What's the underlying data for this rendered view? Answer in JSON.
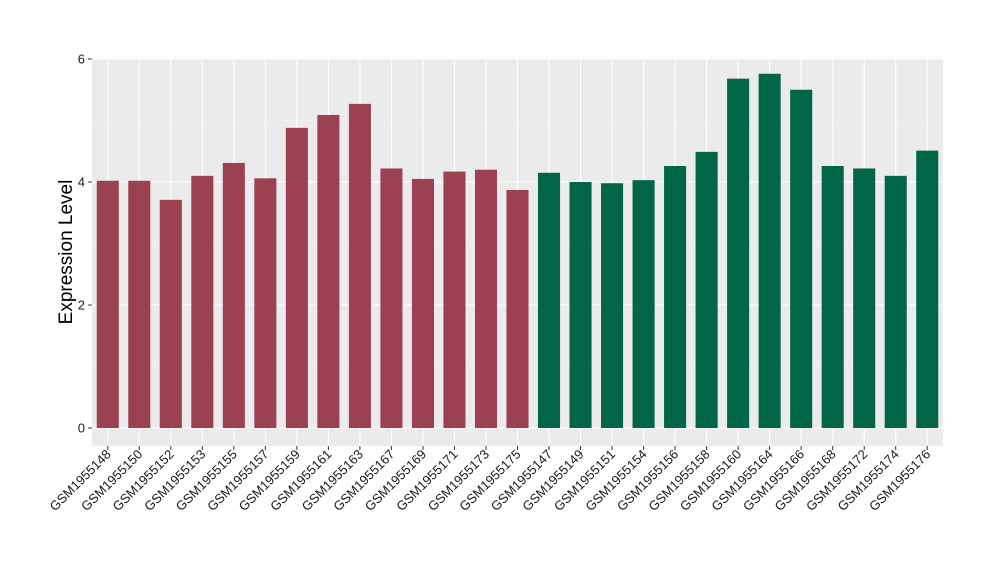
{
  "chart_data": {
    "type": "bar",
    "title": "",
    "xlabel": "",
    "ylabel": "Expression Level",
    "ylim": [
      0,
      6
    ],
    "yticks": [
      0,
      2,
      4,
      6
    ],
    "grid": true,
    "legend": "none",
    "categories": [
      "GSM1955148",
      "GSM1955150",
      "GSM1955152",
      "GSM1955153",
      "GSM1955155",
      "GSM1955157",
      "GSM1955159",
      "GSM1955161",
      "GSM1955163",
      "GSM1955167",
      "GSM1955169",
      "GSM1955171",
      "GSM1955173",
      "GSM1955175",
      "GSM1955147",
      "GSM1955149",
      "GSM1955151",
      "GSM1955154",
      "GSM1955156",
      "GSM1955158",
      "GSM1955160",
      "GSM1955164",
      "GSM1955166",
      "GSM1955168",
      "GSM1955172",
      "GSM1955174",
      "GSM1955176"
    ],
    "values": [
      4.02,
      4.02,
      3.71,
      4.1,
      4.31,
      4.06,
      4.88,
      5.09,
      5.27,
      4.22,
      4.05,
      4.17,
      4.2,
      3.87,
      4.15,
      4.0,
      3.98,
      4.03,
      4.26,
      4.49,
      5.68,
      5.76,
      5.5,
      4.26,
      4.22,
      4.1,
      4.51
    ],
    "group_sizes": [
      14,
      13
    ],
    "colors": {
      "group1": "#9b4150",
      "group2": "#006647",
      "panel_bg": "#ebebeb",
      "grid_major": "#ffffff",
      "grid_minor": "#f5f5f5"
    }
  }
}
